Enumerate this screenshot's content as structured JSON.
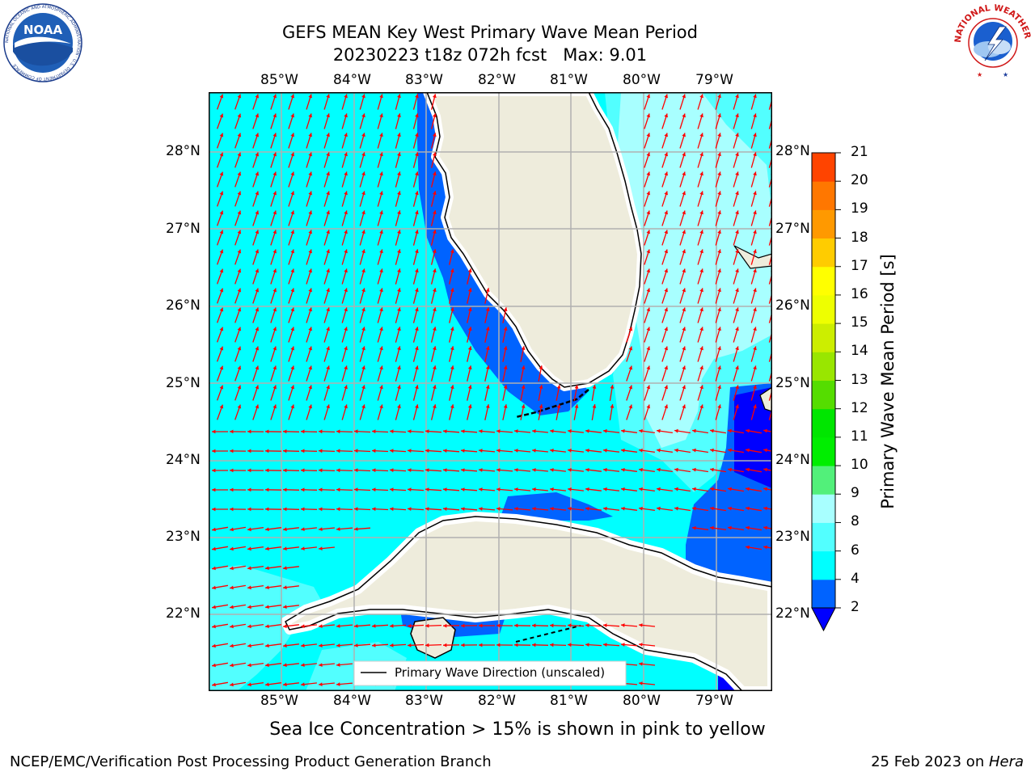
{
  "header": {
    "title_line1": "GEFS MEAN Key West Primary Wave Mean Period",
    "title_line2": "20230223 t18z 072h fcst   Max: 9.01"
  },
  "logos": {
    "left": {
      "icon": "noaa-logo",
      "text": "NOAA",
      "ring_text": "NATIONAL OCEANIC AND ATMOSPHERIC ADMINISTRATION · U.S. DEPARTMENT OF COMMERCE"
    },
    "right": {
      "icon": "nws-logo",
      "ring_text": "NATIONAL WEATHER SERVICE"
    }
  },
  "map": {
    "lon_labels": [
      "85°W",
      "84°W",
      "83°W",
      "82°W",
      "81°W",
      "80°W",
      "79°W"
    ],
    "lat_labels": [
      "28°N",
      "27°N",
      "26°N",
      "25°N",
      "24°N",
      "23°N",
      "22°N"
    ],
    "legend_label": "Primary Wave Direction (unscaled)",
    "colors": {
      "land": "#eeecdc",
      "arrow": "#ff0000",
      "gridline": "#b0b0b0",
      "coast": "#000000"
    }
  },
  "colorbar": {
    "label": "Primary Wave Mean Period [s]",
    "ticks": [
      "2",
      "4",
      "6",
      "8",
      "9",
      "10",
      "11",
      "12",
      "13",
      "14",
      "15",
      "16",
      "17",
      "18",
      "19",
      "20",
      "21"
    ],
    "colors": [
      "#0063ff",
      "#00ffff",
      "#52ffff",
      "#a8ffff",
      "#52f07a",
      "#00ee00",
      "#00e600",
      "#55dd00",
      "#99e600",
      "#ccee00",
      "#eeff00",
      "#ffff00",
      "#ffcc00",
      "#ff9900",
      "#ff7700",
      "#ff4400",
      "#ff1100",
      "#ff0000"
    ],
    "under_color": "#0000ff"
  },
  "caption": "Sea Ice Concentration > 15% is shown in pink to yellow",
  "footer": {
    "left": "NCEP/EMC/Verification Post Processing Product Generation Branch",
    "date": "25 Feb 2023 on ",
    "host": "Hera"
  }
}
